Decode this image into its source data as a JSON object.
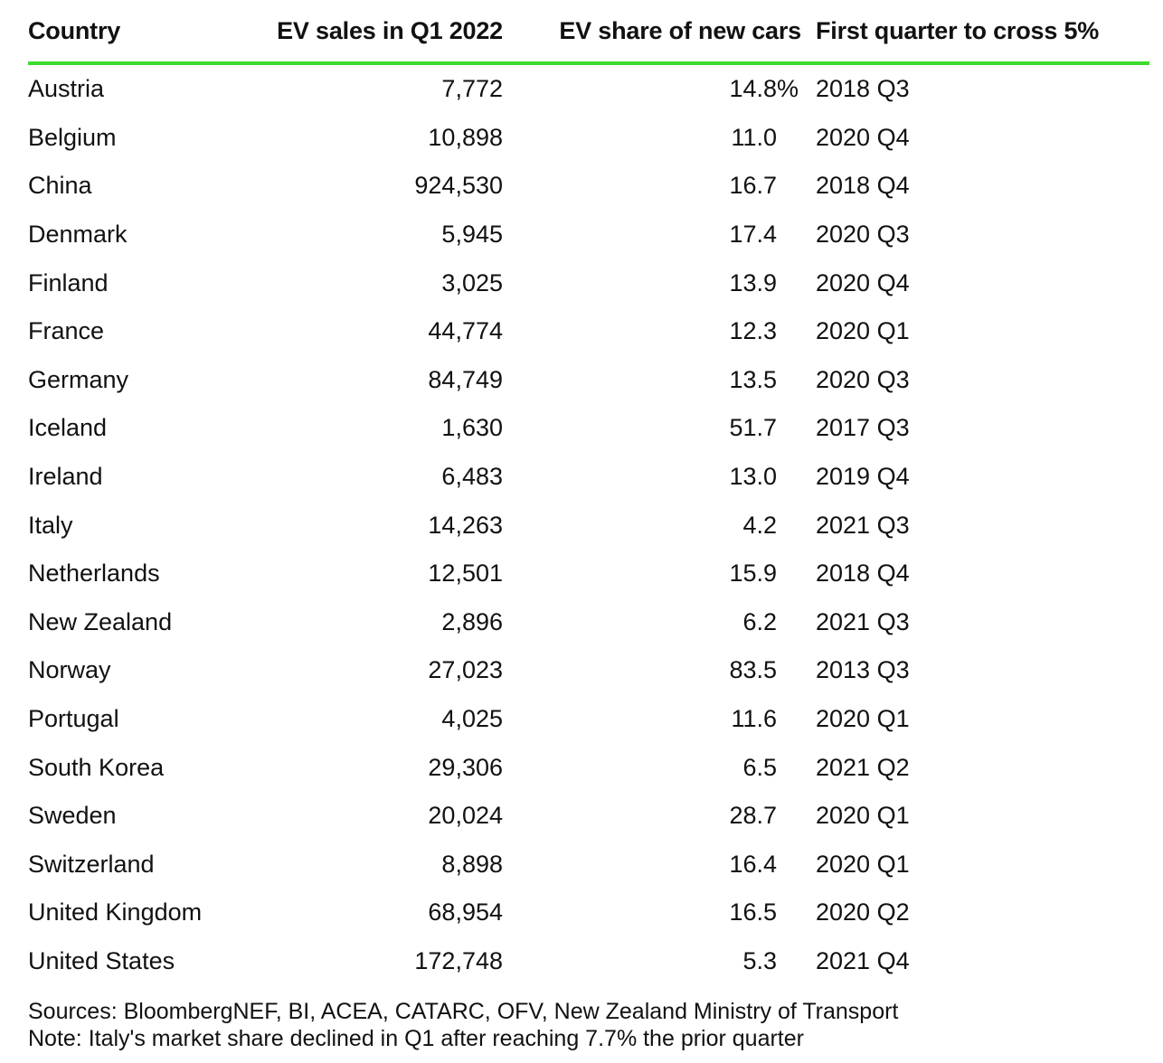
{
  "columns": {
    "country": "Country",
    "sales": "EV sales in Q1 2022",
    "share": "EV share of new cars",
    "first": "First quarter to cross 5%"
  },
  "rows": [
    {
      "country": "Austria",
      "sales": "7,772",
      "share": "14.8",
      "share_suffix": "%",
      "first": "2018 Q3"
    },
    {
      "country": "Belgium",
      "sales": "10,898",
      "share": "11.0",
      "share_suffix": "",
      "first": "2020 Q4"
    },
    {
      "country": "China",
      "sales": "924,530",
      "share": "16.7",
      "share_suffix": "",
      "first": "2018 Q4"
    },
    {
      "country": "Denmark",
      "sales": "5,945",
      "share": "17.4",
      "share_suffix": "",
      "first": "2020 Q3"
    },
    {
      "country": "Finland",
      "sales": "3,025",
      "share": "13.9",
      "share_suffix": "",
      "first": "2020 Q4"
    },
    {
      "country": "France",
      "sales": "44,774",
      "share": "12.3",
      "share_suffix": "",
      "first": "2020 Q1"
    },
    {
      "country": "Germany",
      "sales": "84,749",
      "share": "13.5",
      "share_suffix": "",
      "first": "2020 Q3"
    },
    {
      "country": "Iceland",
      "sales": "1,630",
      "share": "51.7",
      "share_suffix": "",
      "first": "2017 Q3"
    },
    {
      "country": "Ireland",
      "sales": "6,483",
      "share": "13.0",
      "share_suffix": "",
      "first": "2019 Q4"
    },
    {
      "country": "Italy",
      "sales": "14,263",
      "share": "4.2",
      "share_suffix": "",
      "first": "2021 Q3"
    },
    {
      "country": "Netherlands",
      "sales": "12,501",
      "share": "15.9",
      "share_suffix": "",
      "first": "2018 Q4"
    },
    {
      "country": "New Zealand",
      "sales": "2,896",
      "share": "6.2",
      "share_suffix": "",
      "first": "2021 Q3"
    },
    {
      "country": "Norway",
      "sales": "27,023",
      "share": "83.5",
      "share_suffix": "",
      "first": "2013 Q3"
    },
    {
      "country": "Portugal",
      "sales": "4,025",
      "share": "11.6",
      "share_suffix": "",
      "first": "2020 Q1"
    },
    {
      "country": "South Korea",
      "sales": "29,306",
      "share": "6.5",
      "share_suffix": "",
      "first": "2021 Q2"
    },
    {
      "country": "Sweden",
      "sales": "20,024",
      "share": "28.7",
      "share_suffix": "",
      "first": "2020 Q1"
    },
    {
      "country": "Switzerland",
      "sales": "8,898",
      "share": "16.4",
      "share_suffix": "",
      "first": "2020 Q1"
    },
    {
      "country": "United Kingdom",
      "sales": "68,954",
      "share": "16.5",
      "share_suffix": "",
      "first": "2020 Q2"
    },
    {
      "country": "United States",
      "sales": "172,748",
      "share": "5.3",
      "share_suffix": "",
      "first": "2021 Q4"
    }
  ],
  "notes": {
    "sources": "Sources: BloombergNEF, BI, ACEA, CATARC, OFV, New Zealand Ministry of Transport",
    "note": "Note: Italy's market share declined in Q1 after reaching 7.7% the prior quarter"
  },
  "colors": {
    "header_rule": "#3ddc2e",
    "text": "#111111",
    "background": "#ffffff"
  }
}
